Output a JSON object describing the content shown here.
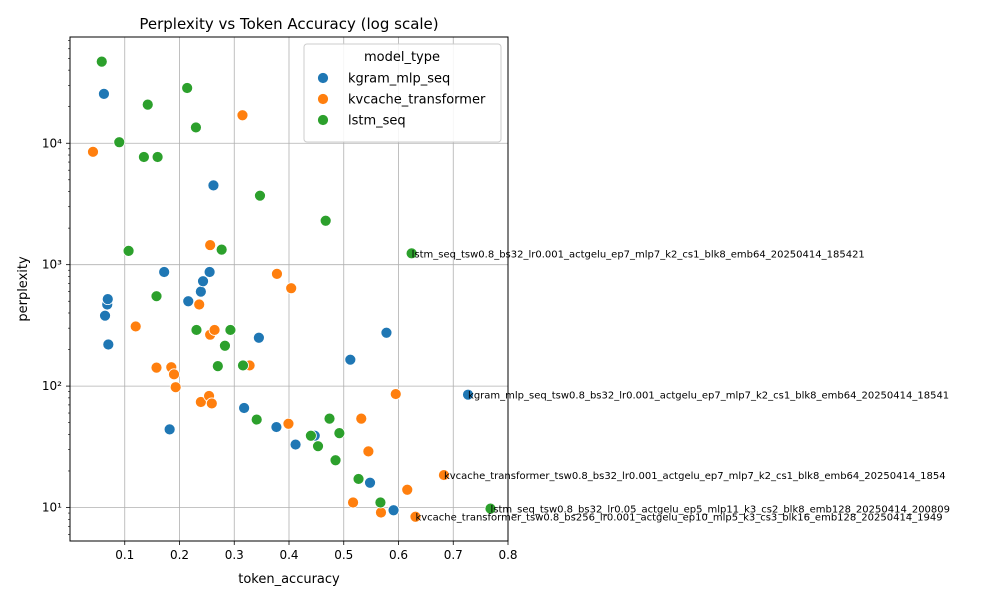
{
  "chart_data": {
    "type": "scatter",
    "title": "Perplexity vs Token Accuracy (log scale)",
    "xlabel": "token_accuracy",
    "ylabel": "perplexity",
    "xlim": [
      0.0,
      0.8
    ],
    "ylim": [
      5.3,
      75000
    ],
    "yscale": "log",
    "grid": true,
    "legend_title": "model_type",
    "legend_position": "top-right",
    "x_ticks": [
      0.1,
      0.2,
      0.3,
      0.4,
      0.5,
      0.6,
      0.7,
      0.8
    ],
    "x_tick_labels": [
      "0.1",
      "0.2",
      "0.3",
      "0.4",
      "0.5",
      "0.6",
      "0.7",
      "0.8"
    ],
    "y_ticks": [
      10,
      100,
      1000,
      10000
    ],
    "y_tick_labels": [
      "10¹",
      "10²",
      "10³",
      "10⁴"
    ],
    "series": [
      {
        "name": "kgram_mlp_seq",
        "color": "#1f77b4",
        "points": [
          [
            0.062,
            25500
          ],
          [
            0.068,
            470
          ],
          [
            0.069,
            520
          ],
          [
            0.064,
            380
          ],
          [
            0.07,
            220
          ],
          [
            0.172,
            870
          ],
          [
            0.182,
            44
          ],
          [
            0.216,
            500
          ],
          [
            0.239,
            600
          ],
          [
            0.243,
            730
          ],
          [
            0.255,
            870
          ],
          [
            0.262,
            4500
          ],
          [
            0.318,
            66
          ],
          [
            0.345,
            250
          ],
          [
            0.377,
            46
          ],
          [
            0.412,
            33
          ],
          [
            0.447,
            39
          ],
          [
            0.512,
            165
          ],
          [
            0.548,
            16
          ],
          [
            0.578,
            275
          ],
          [
            0.591,
            9.5
          ],
          [
            0.727,
            85
          ]
        ]
      },
      {
        "name": "kvcache_transformer",
        "color": "#ff7f0e",
        "points": [
          [
            0.042,
            8500
          ],
          [
            0.12,
            310
          ],
          [
            0.158,
            142
          ],
          [
            0.185,
            143
          ],
          [
            0.19,
            125
          ],
          [
            0.193,
            98
          ],
          [
            0.236,
            470
          ],
          [
            0.239,
            74
          ],
          [
            0.254,
            83
          ],
          [
            0.256,
            1450
          ],
          [
            0.256,
            265
          ],
          [
            0.259,
            72
          ],
          [
            0.264,
            290
          ],
          [
            0.315,
            17000
          ],
          [
            0.328,
            148
          ],
          [
            0.378,
            840
          ],
          [
            0.399,
            49
          ],
          [
            0.404,
            640
          ],
          [
            0.517,
            11
          ],
          [
            0.532,
            54
          ],
          [
            0.545,
            29
          ],
          [
            0.568,
            9.1
          ],
          [
            0.595,
            86
          ],
          [
            0.616,
            14
          ],
          [
            0.631,
            8.4
          ],
          [
            0.683,
            18.5
          ]
        ]
      },
      {
        "name": "lstm_seq",
        "color": "#2ca02c",
        "points": [
          [
            0.058,
            47000
          ],
          [
            0.09,
            10200
          ],
          [
            0.107,
            1300
          ],
          [
            0.135,
            7700
          ],
          [
            0.142,
            20800
          ],
          [
            0.158,
            550
          ],
          [
            0.16,
            7700
          ],
          [
            0.214,
            28500
          ],
          [
            0.23,
            13500
          ],
          [
            0.231,
            290
          ],
          [
            0.27,
            146
          ],
          [
            0.277,
            1330
          ],
          [
            0.283,
            215
          ],
          [
            0.293,
            290
          ],
          [
            0.316,
            148
          ],
          [
            0.341,
            53
          ],
          [
            0.347,
            3700
          ],
          [
            0.44,
            39
          ],
          [
            0.453,
            32
          ],
          [
            0.467,
            2300
          ],
          [
            0.474,
            54
          ],
          [
            0.485,
            24.5
          ],
          [
            0.492,
            41
          ],
          [
            0.527,
            17.2
          ],
          [
            0.567,
            11
          ],
          [
            0.624,
            1240
          ],
          [
            0.768,
            9.8
          ]
        ]
      }
    ],
    "annotations": [
      {
        "x": 0.624,
        "y": 1240,
        "text": "lstm_seq_tsw0.8_bs32_lr0.001_actgelu_ep7_mlp7_k2_cs1_blk8_emb64_20250414_185421"
      },
      {
        "x": 0.727,
        "y": 85,
        "text": "kgram_mlp_seq_tsw0.8_bs32_lr0.001_actgelu_ep7_mlp7_k2_cs1_blk8_emb64_20250414_18541"
      },
      {
        "x": 0.683,
        "y": 18.5,
        "text": "kvcache_transformer_tsw0.8_bs32_lr0.001_actgelu_ep7_mlp7_k2_cs1_blk8_emb64_20250414_1854"
      },
      {
        "x": 0.768,
        "y": 9.8,
        "text": "lstm_seq_tsw0.8_bs32_lr0.05_actgelu_ep5_mlp11_k3_cs2_blk8_emb128_20250414_200809"
      },
      {
        "x": 0.631,
        "y": 8.4,
        "text": "kvcache_transformer_tsw0.8_bs256_lr0.001_actgelu_ep10_mlp5_k3_cs3_blk16_emb128_20250414_1949"
      }
    ]
  }
}
